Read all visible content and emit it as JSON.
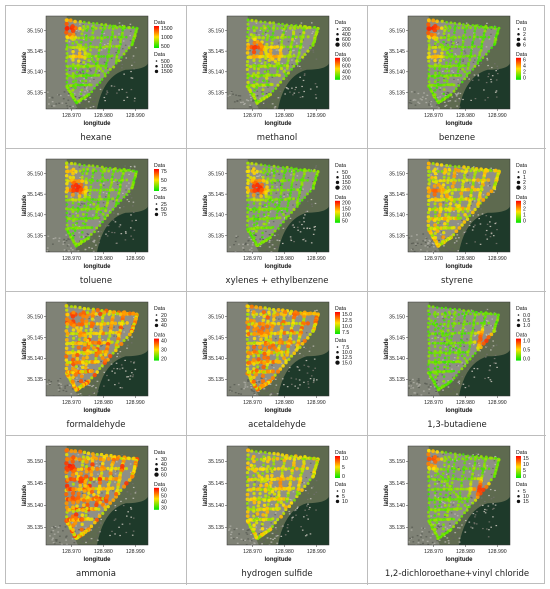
{
  "colors": {
    "map_land": "#5e6a4f",
    "map_water": "#1e3a2a",
    "map_urban": "#8f8f86",
    "road_low": "#00e600",
    "road_mid": "#ffe000",
    "road_high": "#ff0000",
    "border": "#bdbdbd"
  },
  "axis": {
    "x_label": "longitude",
    "y_label": "latitude",
    "x_ticks": [
      "128.970",
      "128.980",
      "128.990"
    ],
    "y_ticks": [
      "35.150",
      "35.145",
      "35.140",
      "35.135"
    ]
  },
  "chart_data": [
    {
      "type": "scatter",
      "title": "hexane",
      "legend_title": "Data",
      "color_ticks": [
        "1500",
        "1000",
        "500"
      ],
      "size_title": "Data",
      "size_ticks": [
        "500",
        "1000",
        "1500"
      ],
      "intensity": 0.22,
      "hotspots": [
        {
          "lon": 128.9695,
          "lat": 35.1505,
          "level": 0.95
        },
        {
          "lon": 128.972,
          "lat": 35.144,
          "level": 0.6
        }
      ]
    },
    {
      "type": "scatter",
      "title": "methanol",
      "legend_title": "Data",
      "color_ticks": [
        "800",
        "600",
        "400",
        "200"
      ],
      "size_title": "Data",
      "size_ticks": [
        "200",
        "400",
        "600",
        "800"
      ],
      "size_first": true,
      "intensity": 0.28,
      "hotspots": [
        {
          "lon": 128.971,
          "lat": 35.1455,
          "level": 0.9
        },
        {
          "lon": 128.977,
          "lat": 35.1445,
          "level": 0.7
        }
      ]
    },
    {
      "type": "scatter",
      "title": "benzene",
      "legend_title": "Data",
      "color_ticks": [
        "6",
        "4",
        "2",
        "0"
      ],
      "size_title": "Data",
      "size_ticks": [
        "0",
        "2",
        "4",
        "6"
      ],
      "size_first": true,
      "intensity": 0.2,
      "hotspots": [
        {
          "lon": 128.9695,
          "lat": 35.1505,
          "level": 0.95
        },
        {
          "lon": 128.9705,
          "lat": 35.144,
          "level": 0.6
        }
      ]
    },
    {
      "type": "scatter",
      "title": "toluene",
      "legend_title": "Data",
      "color_ticks": [
        "75",
        "50",
        "25"
      ],
      "size_title": "Data",
      "size_ticks": [
        "25",
        "50",
        "75"
      ],
      "intensity": 0.22,
      "hotspots": [
        {
          "lon": 128.9715,
          "lat": 35.1465,
          "level": 0.95
        },
        {
          "lon": 128.9695,
          "lat": 35.1505,
          "level": 0.6
        }
      ]
    },
    {
      "type": "scatter",
      "title": "xylenes + ethylbenzene",
      "legend_title": "Data",
      "color_ticks": [
        "200",
        "150",
        "100",
        "50"
      ],
      "size_title": "Data",
      "size_ticks": [
        "50",
        "100",
        "150",
        "200"
      ],
      "size_first": true,
      "intensity": 0.22,
      "hotspots": [
        {
          "lon": 128.9715,
          "lat": 35.1465,
          "level": 0.95
        },
        {
          "lon": 128.97,
          "lat": 35.1505,
          "level": 0.55
        }
      ]
    },
    {
      "type": "scatter",
      "title": "styrene",
      "legend_title": "Data",
      "color_ticks": [
        "3",
        "2",
        "1",
        "0"
      ],
      "size_title": "Data",
      "size_ticks": [
        "0",
        "1",
        "2",
        "3"
      ],
      "size_first": true,
      "intensity": 0.45,
      "hotspots": [
        {
          "lon": 128.9705,
          "lat": 35.1455,
          "level": 0.8
        }
      ]
    },
    {
      "type": "scatter",
      "title": "formaldehyde",
      "legend_title": "Data",
      "color_ticks": [
        "40",
        "30",
        "20"
      ],
      "size_title": "Data",
      "size_ticks": [
        "20",
        "30",
        "40"
      ],
      "size_first": true,
      "intensity": 0.58,
      "hotspots": [
        {
          "lon": 128.9715,
          "lat": 35.1495,
          "level": 0.95
        }
      ]
    },
    {
      "type": "scatter",
      "title": "acetaldehyde",
      "legend_title": "Data",
      "color_ticks": [
        "15.0",
        "12.5",
        "10.0",
        "7.5"
      ],
      "size_title": "Data",
      "size_ticks": [
        "7.5",
        "10.0",
        "12.5",
        "15.0"
      ],
      "intensity": 0.55,
      "hotspots": [
        {
          "lon": 128.973,
          "lat": 35.147,
          "level": 0.8
        }
      ]
    },
    {
      "type": "scatter",
      "title": "1,3-butadiene",
      "legend_title": "Data",
      "color_ticks": [
        "1.0",
        "0.5",
        "0.0"
      ],
      "size_title": "Data",
      "size_ticks": [
        "0.0",
        "0.5",
        "1.0"
      ],
      "size_first": true,
      "intensity": 0.2,
      "hotspots": [
        {
          "lon": 128.986,
          "lat": 35.1445,
          "level": 0.9
        }
      ]
    },
    {
      "type": "scatter",
      "title": "ammonia",
      "legend_title": "Data",
      "color_ticks": [
        "60",
        "50",
        "40",
        "30"
      ],
      "size_title": "Data",
      "size_ticks": [
        "30",
        "40",
        "50",
        "60"
      ],
      "size_first": true,
      "intensity": 0.62,
      "hotspots": [
        {
          "lon": 128.9695,
          "lat": 35.149,
          "level": 0.95
        },
        {
          "lon": 128.971,
          "lat": 35.142,
          "level": 0.85
        }
      ]
    },
    {
      "type": "scatter",
      "title": "hydrogen sulfide",
      "legend_title": "Data",
      "color_ticks": [
        "10",
        "5",
        "0"
      ],
      "size_title": "Data",
      "size_ticks": [
        "0",
        "5",
        "10"
      ],
      "intensity": 0.42,
      "hotspots": [
        {
          "lon": 128.979,
          "lat": 35.145,
          "level": 0.7
        }
      ]
    },
    {
      "type": "scatter",
      "title": "1,2-dichloroethane+vinyl chloride",
      "legend_title": "Data",
      "color_ticks": [
        "15",
        "10",
        "5",
        "0"
      ],
      "size_title": "Data",
      "size_ticks": [
        "5",
        "10",
        "15"
      ],
      "intensity": 0.22,
      "hotspots": [
        {
          "lon": 128.9695,
          "lat": 35.1505,
          "level": 0.85
        },
        {
          "lon": 128.985,
          "lat": 35.1435,
          "level": 0.9
        }
      ]
    }
  ]
}
